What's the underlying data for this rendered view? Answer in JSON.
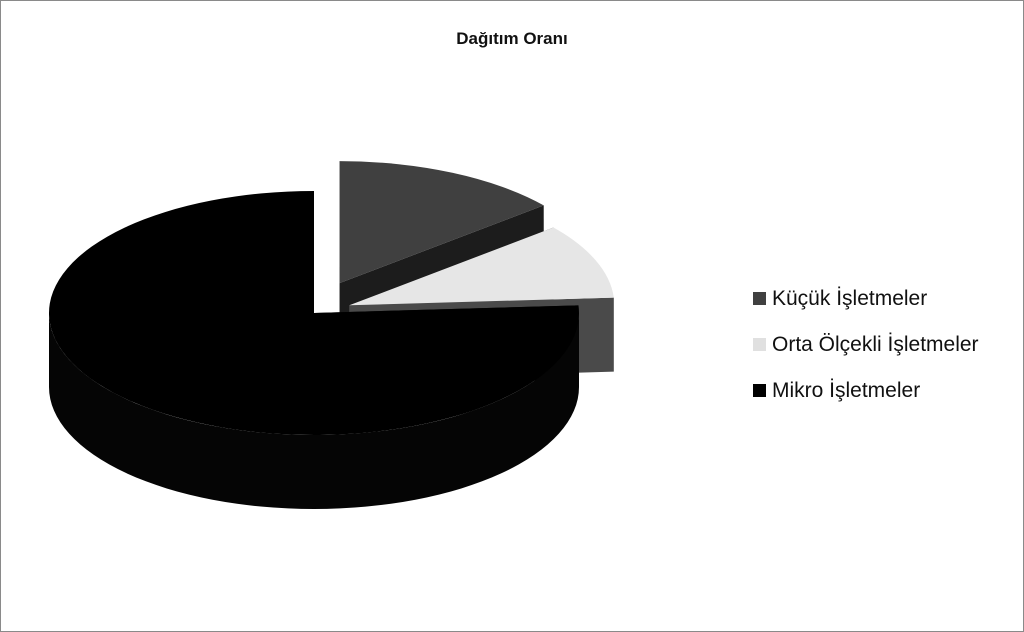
{
  "chart_data": {
    "type": "pie",
    "title": "Dağıtım Oranı",
    "legend_position": "right",
    "slices": [
      {
        "label": "Küçük İşletmeler",
        "value": 14,
        "color": "#404040"
      },
      {
        "label": "Orta Ölçekli İşletmeler",
        "value": 10,
        "color": "#e6e6e6"
      },
      {
        "label": "Mikro İşletmeler",
        "value": 76,
        "color": "#000000"
      }
    ],
    "style": "3d-exploded"
  }
}
